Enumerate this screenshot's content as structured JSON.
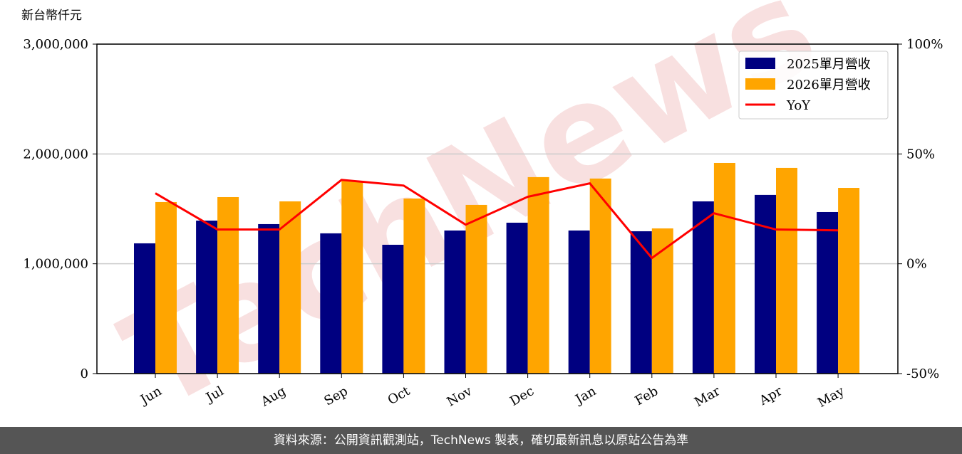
{
  "chart_data": {
    "type": "bar_line",
    "y_label": "新台幣仟元",
    "watermark": "TechNews",
    "categories": [
      "Jun",
      "Jul",
      "Aug",
      "Sep",
      "Oct",
      "Nov",
      "Dec",
      "Jan",
      "Feb",
      "Mar",
      "Apr",
      "May"
    ],
    "series": [
      {
        "name": "2025單月營收",
        "type": "bar",
        "color": "#000080",
        "values": [
          1186000,
          1393000,
          1361000,
          1277000,
          1173000,
          1303000,
          1374000,
          1303000,
          1296000,
          1568000,
          1627000,
          1471000
        ]
      },
      {
        "name": "2026單月營收",
        "type": "bar",
        "color": "#ffa500",
        "values": [
          1562000,
          1607000,
          1568000,
          1756000,
          1594000,
          1536000,
          1789000,
          1776000,
          1322000,
          1918000,
          1873000,
          1691000
        ]
      },
      {
        "name": "YoY",
        "type": "line",
        "axis": "y2",
        "color": "#ff0000",
        "values": [
          32.1,
          15.6,
          15.6,
          38.2,
          35.6,
          17.8,
          30.5,
          36.6,
          2.6,
          23.0,
          15.6,
          15.2
        ]
      }
    ],
    "ylim": [
      0,
      3000000
    ],
    "yticks": [
      0,
      {
        "value": 1000000,
        "label": "1,000,000"
      },
      {
        "value": 2000000,
        "label": "2,000,000"
      },
      {
        "value": 3000000,
        "label": "3,000,000"
      }
    ],
    "y2lim": [
      -50,
      100
    ],
    "y2ticks": [
      {
        "value": -50,
        "label": "-50%"
      },
      {
        "value": 0,
        "label": "0%"
      },
      {
        "value": 50,
        "label": "50%"
      },
      {
        "value": 100,
        "label": "100%"
      }
    ],
    "grid": true,
    "legend": "upper right"
  },
  "footer": "資料來源：公開資訊觀測站，TechNews 製表，確切最新訊息以原站公告為準"
}
